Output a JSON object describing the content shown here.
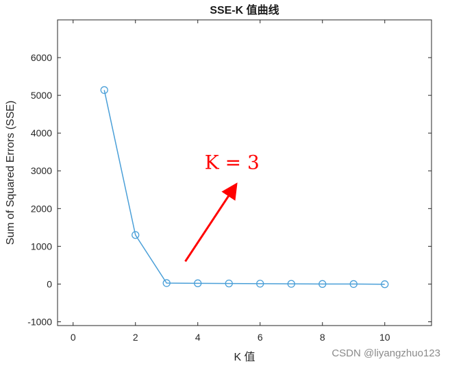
{
  "watermark": "CSDN @liyangzhuo123",
  "chart_data": {
    "type": "line",
    "title": "SSE-K 值曲线",
    "xlabel": "K 值",
    "ylabel": "Sum of Squared Errors (SSE)",
    "xlim": [
      -0.5,
      11.5
    ],
    "ylim": [
      -1100,
      7000
    ],
    "xticks": [
      0,
      2,
      4,
      6,
      8,
      10
    ],
    "yticks": [
      -1000,
      0,
      1000,
      2000,
      3000,
      4000,
      5000,
      6000
    ],
    "grid": false,
    "series": [
      {
        "x": [
          1,
          2,
          3,
          4,
          5,
          6,
          7,
          8,
          9,
          10
        ],
        "values": [
          5140,
          1300,
          25,
          20,
          15,
          10,
          5,
          2,
          0,
          -5
        ],
        "color": "#4a9fd8",
        "marker": "circle"
      }
    ],
    "annotations": [
      {
        "text": "K = 3",
        "color": "#ff0000",
        "x": 5.1,
        "y": 3050,
        "arrow_from": [
          3.6,
          600
        ],
        "arrow_to": [
          5.2,
          2600
        ]
      }
    ]
  }
}
